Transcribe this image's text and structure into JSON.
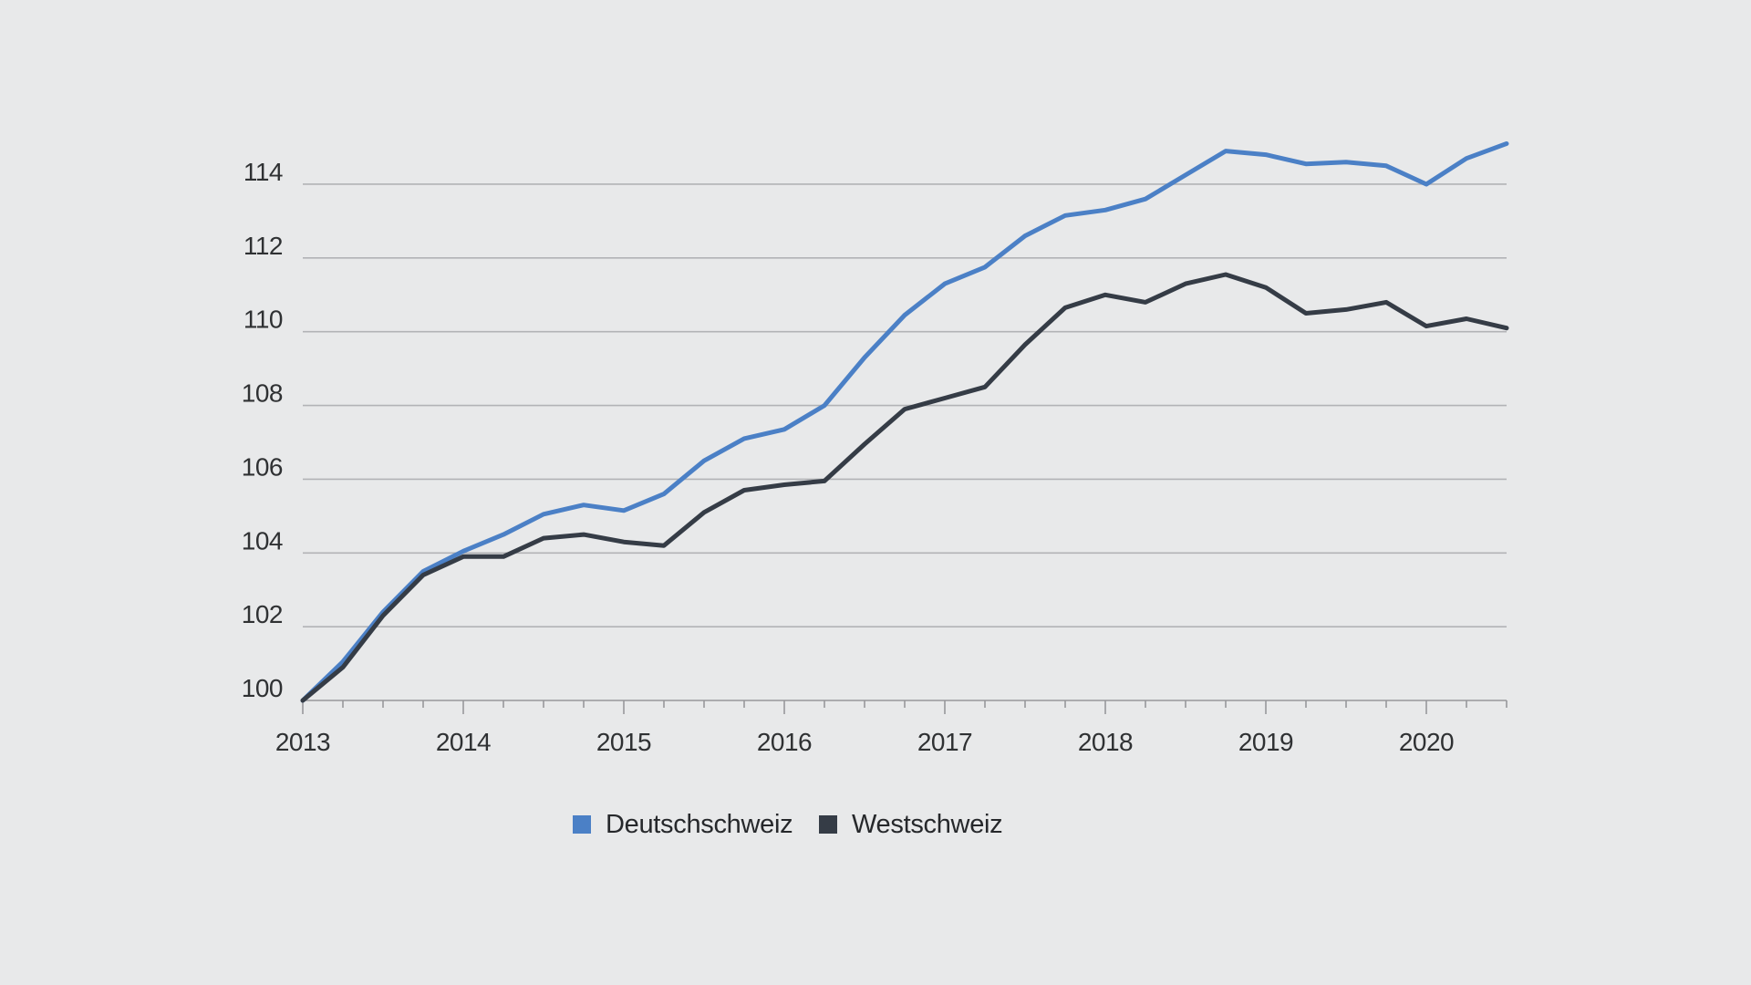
{
  "colors": {
    "background": "#e8e9ea",
    "gridline": "#b2b3b6",
    "axis_baseline": "#97989b",
    "tick_mark": "#97989b",
    "axis_label_text": "#2f3133",
    "legend_text": "#26282b"
  },
  "chart_data": {
    "type": "line",
    "title": "",
    "xlabel": "",
    "ylabel": "",
    "x_frequency": "quarterly",
    "x_start": "2013-Q1",
    "x_end": "2020-Q3",
    "x_year_labels": [
      "2013",
      "2014",
      "2015",
      "2016",
      "2017",
      "2018",
      "2019",
      "2020"
    ],
    "yticks": [
      100,
      102,
      104,
      106,
      108,
      110,
      112,
      114
    ],
    "ylim": [
      100,
      116
    ],
    "grid": "horizontal",
    "legend_position": "bottom",
    "series": [
      {
        "name": "Deutschschweiz",
        "color": "#4b80c6",
        "values": [
          100.0,
          101.05,
          102.4,
          103.5,
          104.05,
          104.5,
          105.05,
          105.3,
          105.15,
          105.6,
          106.5,
          107.1,
          107.35,
          108.0,
          109.3,
          110.45,
          111.3,
          111.75,
          112.6,
          113.15,
          113.3,
          113.6,
          114.25,
          114.9,
          114.8,
          114.55,
          114.6,
          114.5,
          114.0,
          114.7,
          115.1
        ]
      },
      {
        "name": "Westschweiz",
        "color": "#353c46",
        "values": [
          100.0,
          100.9,
          102.3,
          103.4,
          103.9,
          103.9,
          104.4,
          104.5,
          104.3,
          104.2,
          105.1,
          105.7,
          105.85,
          105.95,
          106.95,
          107.9,
          108.2,
          108.5,
          109.65,
          110.65,
          111.0,
          110.8,
          111.3,
          111.55,
          111.2,
          110.5,
          110.6,
          110.8,
          110.15,
          110.35,
          110.1
        ]
      }
    ]
  }
}
